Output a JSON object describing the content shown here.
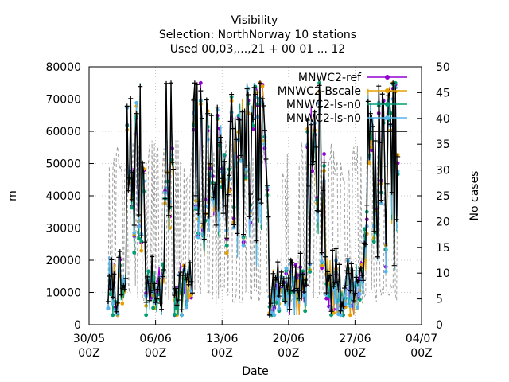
{
  "title_lines": [
    "Visibility",
    "Selection: NorthNorway     10 stations",
    "Used 00,03,...,21 + 00 01 ... 12"
  ],
  "chart_data": {
    "type": "line",
    "title": "Visibility",
    "subtitle": [
      "Selection: NorthNorway     10 stations",
      "Used 00,03,...,21 + 00 01 ... 12"
    ],
    "xlabel": "Date",
    "ylabel": "m",
    "y2label": "No cases",
    "ylim": [
      0,
      80000
    ],
    "y2lim": [
      0,
      50
    ],
    "xlim": [
      "2024-05-30 00:00",
      "2024-07-04 00:00"
    ],
    "yticks": [
      "0",
      "10000",
      "20000",
      "30000",
      "40000",
      "50000",
      "60000",
      "70000",
      "80000"
    ],
    "y2ticks": [
      "0",
      "5",
      "10",
      "15",
      "20",
      "25",
      "30",
      "35",
      "40",
      "45",
      "50"
    ],
    "xticks": [
      {
        "line1": "30/05",
        "line2": "00Z",
        "date": "2024-05-30"
      },
      {
        "line1": "06/06",
        "line2": "00Z",
        "date": "2024-06-06"
      },
      {
        "line1": "13/06",
        "line2": "00Z",
        "date": "2024-06-13"
      },
      {
        "line1": "20/06",
        "line2": "00Z",
        "date": "2024-06-20"
      },
      {
        "line1": "27/06",
        "line2": "00Z",
        "date": "2024-06-27"
      },
      {
        "line1": "04/07",
        "line2": "00Z",
        "date": "2024-07-04"
      }
    ],
    "grid": true,
    "legend_position": "top-right",
    "series": [
      {
        "name": "MNWC2-ref",
        "color": "#9400d3",
        "marker": "circle",
        "axis": "y1",
        "base": 0,
        "seed": 11
      },
      {
        "name": "MNWC2-Bscale",
        "color": "#e69f00",
        "marker": "circle",
        "axis": "y1",
        "base": 0,
        "seed": 23
      },
      {
        "name": "MNWC2-ls-n0",
        "color": "#009e73",
        "marker": "circle",
        "axis": "y1",
        "base": 0,
        "seed": 37
      },
      {
        "name": "MNWC2-ls-n0",
        "color": "#56b4e9",
        "marker": "circle",
        "axis": "y1",
        "base": 0,
        "seed": 41
      },
      {
        "name": "",
        "color": "#000000",
        "marker": "plus",
        "axis": "y1",
        "base": 2000,
        "seed": 53
      }
    ],
    "cases_series": {
      "color": "#a0a0a0",
      "axis": "y2",
      "dash": "dashed",
      "values_approx": [
        4,
        35
      ]
    },
    "data_start": "2024-06-01 00:00",
    "data_end": "2024-07-01 12:00",
    "step_hours": 3,
    "visibility_profile": {
      "low_periods": [
        [
          "2024-06-01",
          "2024-06-02"
        ],
        [
          "2024-06-05",
          "2024-06-06"
        ],
        [
          "2024-06-08",
          "2024-06-09"
        ],
        [
          "2024-06-18",
          "2024-06-19"
        ],
        [
          "2024-06-20",
          "2024-06-21"
        ],
        [
          "2024-06-24",
          "2024-06-25"
        ],
        [
          "2024-06-26",
          "2024-06-27"
        ]
      ],
      "typical_range": [
        20000,
        75000
      ]
    }
  }
}
